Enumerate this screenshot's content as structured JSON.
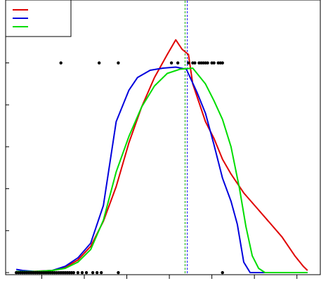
{
  "chart_data": {
    "type": "line",
    "title": "",
    "xlabel": "",
    "ylabel": "",
    "xlim": [
      -0.1,
      7.3
    ],
    "ylim": [
      -0.01,
      1.3
    ],
    "grid": false,
    "legend_placement": "top-left",
    "x_ticks": [
      0.75,
      1.75,
      2.75,
      3.75,
      4.75,
      5.75,
      6.75
    ],
    "y_ticks": [
      0,
      0.2,
      0.4,
      0.6,
      0.8,
      1.0,
      1.2
    ],
    "vlines": [
      {
        "x": 4.12,
        "color": "#00aa00",
        "dash": "3,2"
      },
      {
        "x": 4.17,
        "color": "#0000ff",
        "dash": "3,2"
      }
    ],
    "series": [
      {
        "color": "#e00000",
        "x": [
          0.15,
          0.5,
          1.0,
          1.3,
          1.6,
          1.9,
          2.2,
          2.5,
          2.8,
          3.1,
          3.4,
          3.7,
          3.9,
          4.05,
          4.2,
          4.3,
          4.45,
          4.6,
          4.8,
          5.0,
          5.2,
          5.5,
          5.8,
          6.1,
          6.4,
          6.7,
          6.9,
          7.0
        ],
        "y": [
          0.0,
          0.005,
          0.01,
          0.025,
          0.06,
          0.125,
          0.245,
          0.41,
          0.62,
          0.79,
          0.93,
          1.04,
          1.11,
          1.065,
          1.04,
          0.9,
          0.81,
          0.72,
          0.64,
          0.54,
          0.47,
          0.38,
          0.31,
          0.24,
          0.17,
          0.08,
          0.03,
          0.01
        ]
      },
      {
        "color": "#0000dd",
        "x": [
          0.15,
          0.3,
          0.6,
          1.0,
          1.3,
          1.6,
          1.9,
          2.2,
          2.5,
          2.8,
          3.0,
          3.3,
          3.6,
          3.9,
          4.15,
          4.4,
          4.6,
          4.8,
          5.0,
          5.2,
          5.35,
          5.5,
          5.65,
          5.8,
          6.2,
          6.6,
          7.0
        ],
        "y": [
          0.015,
          0.01,
          0.005,
          0.01,
          0.03,
          0.07,
          0.14,
          0.32,
          0.72,
          0.87,
          0.93,
          0.965,
          0.975,
          0.98,
          0.97,
          0.86,
          0.76,
          0.61,
          0.45,
          0.34,
          0.23,
          0.05,
          0.0,
          0.0,
          0.0,
          0.0,
          0.0
        ]
      },
      {
        "color": "#00dd00",
        "x": [
          0.15,
          0.6,
          1.0,
          1.3,
          1.6,
          1.9,
          2.2,
          2.5,
          2.8,
          3.1,
          3.4,
          3.7,
          4.0,
          4.3,
          4.6,
          4.8,
          5.0,
          5.2,
          5.4,
          5.55,
          5.7,
          5.85,
          6.0,
          6.3,
          6.6,
          7.0
        ],
        "y": [
          0.005,
          0.005,
          0.01,
          0.02,
          0.05,
          0.11,
          0.25,
          0.48,
          0.65,
          0.79,
          0.89,
          0.95,
          0.97,
          0.975,
          0.9,
          0.82,
          0.73,
          0.6,
          0.4,
          0.22,
          0.08,
          0.02,
          0.0,
          0.0,
          0.0,
          0.0
        ]
      }
    ],
    "points_top": {
      "y": 1.0,
      "x": [
        1.2,
        2.1,
        2.55,
        3.8,
        3.95,
        4.2,
        4.3,
        4.35,
        4.45,
        4.5,
        4.55,
        4.6,
        4.65,
        4.75,
        4.8,
        4.9,
        4.95,
        5.0
      ]
    },
    "points_bottom": {
      "y": 0.0,
      "x": [
        0.15,
        0.2,
        0.25,
        0.3,
        0.35,
        0.4,
        0.45,
        0.5,
        0.55,
        0.6,
        0.65,
        0.7,
        0.75,
        0.8,
        0.85,
        0.9,
        0.95,
        1.0,
        1.05,
        1.1,
        1.15,
        1.2,
        1.25,
        1.3,
        1.35,
        1.4,
        1.45,
        1.5,
        1.6,
        1.7,
        1.8,
        1.95,
        2.05,
        2.15,
        2.55,
        5.0
      ]
    }
  }
}
